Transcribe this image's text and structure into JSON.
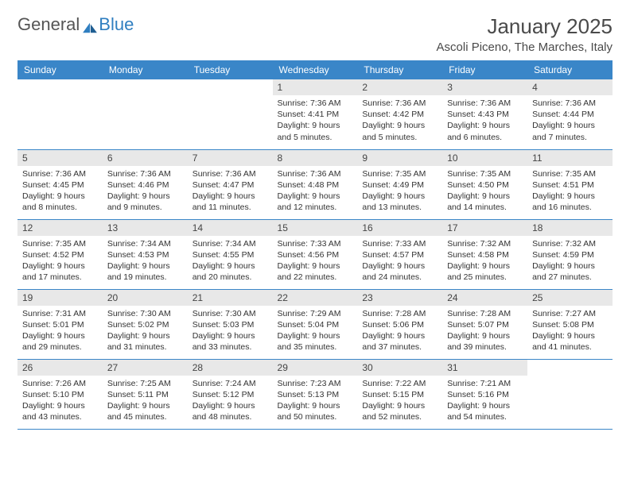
{
  "logo": {
    "text_a": "General",
    "text_b": "Blue"
  },
  "title": {
    "month": "January 2025",
    "location": "Ascoli Piceno, The Marches, Italy"
  },
  "colors": {
    "header_bg": "#3a86c8",
    "header_fg": "#ffffff",
    "daynum_bg": "#e8e8e8",
    "rule": "#3a86c8",
    "text": "#333333",
    "logo_gray": "#555555",
    "logo_blue": "#2f7ec0"
  },
  "fonts": {
    "title_month_pt": 26,
    "title_loc_pt": 15,
    "header_pt": 12,
    "daynum_pt": 12,
    "body_pt": 10.5
  },
  "day_headers": [
    "Sunday",
    "Monday",
    "Tuesday",
    "Wednesday",
    "Thursday",
    "Friday",
    "Saturday"
  ],
  "weeks": [
    [
      null,
      null,
      null,
      {
        "n": "1",
        "sunrise": "7:36 AM",
        "sunset": "4:41 PM",
        "dl": "9 hours and 5 minutes."
      },
      {
        "n": "2",
        "sunrise": "7:36 AM",
        "sunset": "4:42 PM",
        "dl": "9 hours and 5 minutes."
      },
      {
        "n": "3",
        "sunrise": "7:36 AM",
        "sunset": "4:43 PM",
        "dl": "9 hours and 6 minutes."
      },
      {
        "n": "4",
        "sunrise": "7:36 AM",
        "sunset": "4:44 PM",
        "dl": "9 hours and 7 minutes."
      }
    ],
    [
      {
        "n": "5",
        "sunrise": "7:36 AM",
        "sunset": "4:45 PM",
        "dl": "9 hours and 8 minutes."
      },
      {
        "n": "6",
        "sunrise": "7:36 AM",
        "sunset": "4:46 PM",
        "dl": "9 hours and 9 minutes."
      },
      {
        "n": "7",
        "sunrise": "7:36 AM",
        "sunset": "4:47 PM",
        "dl": "9 hours and 11 minutes."
      },
      {
        "n": "8",
        "sunrise": "7:36 AM",
        "sunset": "4:48 PM",
        "dl": "9 hours and 12 minutes."
      },
      {
        "n": "9",
        "sunrise": "7:35 AM",
        "sunset": "4:49 PM",
        "dl": "9 hours and 13 minutes."
      },
      {
        "n": "10",
        "sunrise": "7:35 AM",
        "sunset": "4:50 PM",
        "dl": "9 hours and 14 minutes."
      },
      {
        "n": "11",
        "sunrise": "7:35 AM",
        "sunset": "4:51 PM",
        "dl": "9 hours and 16 minutes."
      }
    ],
    [
      {
        "n": "12",
        "sunrise": "7:35 AM",
        "sunset": "4:52 PM",
        "dl": "9 hours and 17 minutes."
      },
      {
        "n": "13",
        "sunrise": "7:34 AM",
        "sunset": "4:53 PM",
        "dl": "9 hours and 19 minutes."
      },
      {
        "n": "14",
        "sunrise": "7:34 AM",
        "sunset": "4:55 PM",
        "dl": "9 hours and 20 minutes."
      },
      {
        "n": "15",
        "sunrise": "7:33 AM",
        "sunset": "4:56 PM",
        "dl": "9 hours and 22 minutes."
      },
      {
        "n": "16",
        "sunrise": "7:33 AM",
        "sunset": "4:57 PM",
        "dl": "9 hours and 24 minutes."
      },
      {
        "n": "17",
        "sunrise": "7:32 AM",
        "sunset": "4:58 PM",
        "dl": "9 hours and 25 minutes."
      },
      {
        "n": "18",
        "sunrise": "7:32 AM",
        "sunset": "4:59 PM",
        "dl": "9 hours and 27 minutes."
      }
    ],
    [
      {
        "n": "19",
        "sunrise": "7:31 AM",
        "sunset": "5:01 PM",
        "dl": "9 hours and 29 minutes."
      },
      {
        "n": "20",
        "sunrise": "7:30 AM",
        "sunset": "5:02 PM",
        "dl": "9 hours and 31 minutes."
      },
      {
        "n": "21",
        "sunrise": "7:30 AM",
        "sunset": "5:03 PM",
        "dl": "9 hours and 33 minutes."
      },
      {
        "n": "22",
        "sunrise": "7:29 AM",
        "sunset": "5:04 PM",
        "dl": "9 hours and 35 minutes."
      },
      {
        "n": "23",
        "sunrise": "7:28 AM",
        "sunset": "5:06 PM",
        "dl": "9 hours and 37 minutes."
      },
      {
        "n": "24",
        "sunrise": "7:28 AM",
        "sunset": "5:07 PM",
        "dl": "9 hours and 39 minutes."
      },
      {
        "n": "25",
        "sunrise": "7:27 AM",
        "sunset": "5:08 PM",
        "dl": "9 hours and 41 minutes."
      }
    ],
    [
      {
        "n": "26",
        "sunrise": "7:26 AM",
        "sunset": "5:10 PM",
        "dl": "9 hours and 43 minutes."
      },
      {
        "n": "27",
        "sunrise": "7:25 AM",
        "sunset": "5:11 PM",
        "dl": "9 hours and 45 minutes."
      },
      {
        "n": "28",
        "sunrise": "7:24 AM",
        "sunset": "5:12 PM",
        "dl": "9 hours and 48 minutes."
      },
      {
        "n": "29",
        "sunrise": "7:23 AM",
        "sunset": "5:13 PM",
        "dl": "9 hours and 50 minutes."
      },
      {
        "n": "30",
        "sunrise": "7:22 AM",
        "sunset": "5:15 PM",
        "dl": "9 hours and 52 minutes."
      },
      {
        "n": "31",
        "sunrise": "7:21 AM",
        "sunset": "5:16 PM",
        "dl": "9 hours and 54 minutes."
      },
      null
    ]
  ],
  "labels": {
    "sunrise": "Sunrise:",
    "sunset": "Sunset:",
    "daylight": "Daylight:"
  }
}
